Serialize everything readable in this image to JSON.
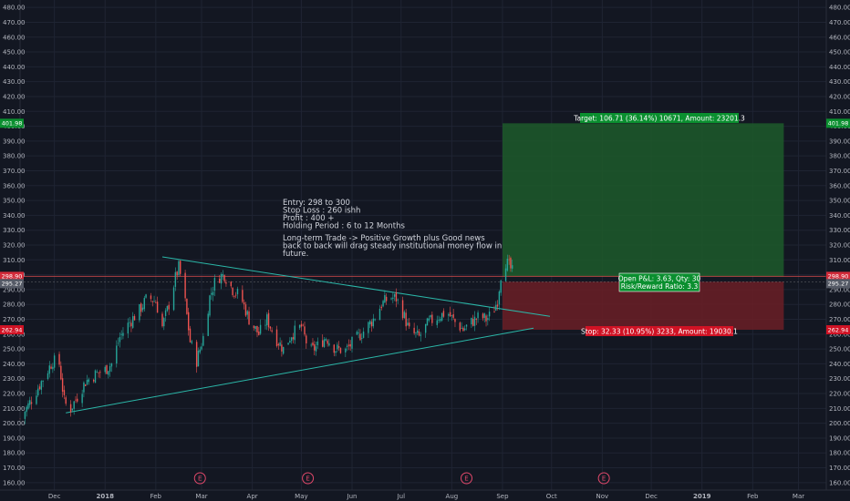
{
  "colors": {
    "background": "#131722",
    "grid": "#1f2433",
    "up": "#26a69a",
    "down": "#ef5350",
    "trendline": "#2bb7a8",
    "target_zone": "#1d5a2a",
    "stop_zone": "#6b1f26",
    "entry_line": "#ef5350",
    "label_green": "#0a8f2f",
    "label_red": "#d01224",
    "earnings": "#e0486a"
  },
  "chart_data": {
    "type": "candlestick",
    "title": "",
    "xlabel": "",
    "ylabel": "",
    "ylim": [
      155,
      485
    ],
    "x_range": [
      "2017-11-10",
      "2019-03-18"
    ],
    "y_ticks": [
      160,
      170,
      180,
      190,
      200,
      210,
      220,
      230,
      240,
      250,
      260,
      270,
      280,
      290,
      300,
      310,
      320,
      330,
      340,
      350,
      360,
      370,
      380,
      390,
      400,
      410,
      420,
      430,
      440,
      450,
      460,
      470,
      480
    ],
    "y_tick_labels": [
      "160.00",
      "170.00",
      "180.00",
      "190.00",
      "200.00",
      "210.00",
      "220.00",
      "230.00",
      "240.00",
      "250.00",
      "260.00",
      "270.00",
      "280.00",
      "290.00",
      "300.00",
      "310.00",
      "320.00",
      "330.00",
      "340.00",
      "350.00",
      "360.00",
      "370.00",
      "380.00",
      "390.00",
      "400.00",
      "410.00",
      "420.00",
      "430.00",
      "440.00",
      "450.00",
      "460.00",
      "470.00",
      "480.00"
    ],
    "x_ticks": [
      {
        "label": "Dec",
        "date": "2017-12-01"
      },
      {
        "label": "2018",
        "date": "2018-01-01"
      },
      {
        "label": "Feb",
        "date": "2018-02-01"
      },
      {
        "label": "Mar",
        "date": "2018-03-01"
      },
      {
        "label": "Apr",
        "date": "2018-04-01"
      },
      {
        "label": "May",
        "date": "2018-05-01"
      },
      {
        "label": "Jun",
        "date": "2018-06-01"
      },
      {
        "label": "Jul",
        "date": "2018-07-01"
      },
      {
        "label": "Aug",
        "date": "2018-08-01"
      },
      {
        "label": "Sep",
        "date": "2018-09-01"
      },
      {
        "label": "Oct",
        "date": "2018-10-01"
      },
      {
        "label": "Nov",
        "date": "2018-11-01"
      },
      {
        "label": "Dec",
        "date": "2018-12-01"
      },
      {
        "label": "2019",
        "date": "2019-01-01"
      },
      {
        "label": "Feb",
        "date": "2019-02-01"
      },
      {
        "label": "Mar",
        "date": "2019-03-01"
      }
    ],
    "series": [
      {
        "type": "close_path",
        "points": [
          [
            "2017-11-10",
            203
          ],
          [
            "2017-11-15",
            212
          ],
          [
            "2017-11-20",
            222
          ],
          [
            "2017-11-25",
            232
          ],
          [
            "2017-11-30",
            242
          ],
          [
            "2017-12-04",
            240
          ],
          [
            "2017-12-07",
            215
          ],
          [
            "2017-12-10",
            208
          ],
          [
            "2017-12-15",
            218
          ],
          [
            "2017-12-20",
            228
          ],
          [
            "2017-12-26",
            233
          ],
          [
            "2018-01-01",
            236
          ],
          [
            "2018-01-05",
            240
          ],
          [
            "2018-01-10",
            258
          ],
          [
            "2018-01-16",
            268
          ],
          [
            "2018-01-22",
            276
          ],
          [
            "2018-01-27",
            285
          ],
          [
            "2018-02-01",
            282
          ],
          [
            "2018-02-05",
            265
          ],
          [
            "2018-02-09",
            280
          ],
          [
            "2018-02-13",
            298
          ],
          [
            "2018-02-15",
            305
          ],
          [
            "2018-02-18",
            290
          ],
          [
            "2018-02-22",
            255
          ],
          [
            "2018-02-26",
            242
          ],
          [
            "2018-03-02",
            258
          ],
          [
            "2018-03-06",
            285
          ],
          [
            "2018-03-10",
            298
          ],
          [
            "2018-03-15",
            300
          ],
          [
            "2018-03-20",
            290
          ],
          [
            "2018-03-25",
            285
          ],
          [
            "2018-03-30",
            270
          ],
          [
            "2018-04-05",
            260
          ],
          [
            "2018-04-10",
            270
          ],
          [
            "2018-04-15",
            258
          ],
          [
            "2018-04-20",
            250
          ],
          [
            "2018-04-25",
            260
          ],
          [
            "2018-05-01",
            265
          ],
          [
            "2018-05-06",
            248
          ],
          [
            "2018-05-11",
            252
          ],
          [
            "2018-05-16",
            258
          ],
          [
            "2018-05-22",
            250
          ],
          [
            "2018-05-28",
            249
          ],
          [
            "2018-06-02",
            255
          ],
          [
            "2018-06-08",
            262
          ],
          [
            "2018-06-14",
            270
          ],
          [
            "2018-06-19",
            280
          ],
          [
            "2018-06-24",
            285
          ],
          [
            "2018-06-28",
            284
          ],
          [
            "2018-07-02",
            275
          ],
          [
            "2018-07-06",
            262
          ],
          [
            "2018-07-12",
            258
          ],
          [
            "2018-07-18",
            268
          ],
          [
            "2018-07-24",
            272
          ],
          [
            "2018-07-29",
            275
          ],
          [
            "2018-08-03",
            268
          ],
          [
            "2018-08-08",
            263
          ],
          [
            "2018-08-13",
            268
          ],
          [
            "2018-08-18",
            272
          ],
          [
            "2018-08-22",
            270
          ],
          [
            "2018-08-26",
            274
          ],
          [
            "2018-08-29",
            283
          ],
          [
            "2018-08-31",
            300
          ],
          [
            "2018-09-02",
            310
          ],
          [
            "2018-09-05",
            306
          ],
          [
            "2018-09-07",
            302
          ],
          [
            "2018-09-09",
            298
          ]
        ]
      }
    ],
    "trendlines": [
      {
        "name": "upper",
        "from": [
          "2018-02-05",
          312
        ],
        "to": [
          "2018-09-30",
          272
        ]
      },
      {
        "name": "lower",
        "from": [
          "2017-12-08",
          207
        ],
        "to": [
          "2018-09-20",
          264
        ]
      }
    ],
    "earnings_markers": [
      "2018-02-28",
      "2018-05-05",
      "2018-08-10",
      "2018-11-02"
    ],
    "earnings_label": "E",
    "position": {
      "entry": 298.9,
      "target": 401.98,
      "stop": 262.94,
      "current": 295.27,
      "start": "2018-09-01",
      "end": "2019-02-20"
    },
    "price_badges": [
      {
        "value": 401.98,
        "text": "401.98",
        "kind": "target"
      },
      {
        "value": 298.9,
        "text": "298.90",
        "kind": "entry"
      },
      {
        "value": 295.27,
        "text": "295.27",
        "kind": "current"
      },
      {
        "value": 262.94,
        "text": "262.94",
        "kind": "stop"
      }
    ]
  },
  "labels": {
    "target": "Target: 106.71 (36.14%) 10671, Amount: 23201.3",
    "stop": "Stop: 32.33 (10.95%) 3233, Amount: 19030.1",
    "pnl_line1": "Open P&L: 3.63, Qty: 30",
    "pnl_line2": "Risk/Reward Ratio: 3.3"
  },
  "note": {
    "lines": [
      "Entry: 298 to 300",
      "Stop Loss : 260 ishh",
      "Profit : 400 +",
      "Holding Period : 6 to 12 Months",
      "",
      "Long-term Trade -> Positive Growth plus Good news",
      "back to back will drag steady institutional money flow in",
      "future."
    ]
  }
}
